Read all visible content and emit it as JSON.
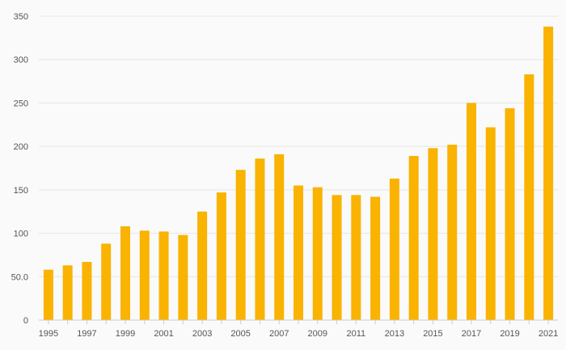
{
  "chart_data": {
    "type": "bar",
    "title": "",
    "xlabel": "",
    "ylabel": "",
    "categories": [
      "1995",
      "1996",
      "1997",
      "1998",
      "1999",
      "2000",
      "2001",
      "2002",
      "2003",
      "2004",
      "2005",
      "2006",
      "2007",
      "2008",
      "2009",
      "2010",
      "2011",
      "2012",
      "2013",
      "2014",
      "2015",
      "2016",
      "2017",
      "2018",
      "2019",
      "2020",
      "2021"
    ],
    "x_tick_labels": [
      "1995",
      "1997",
      "1999",
      "2001",
      "2003",
      "2005",
      "2007",
      "2009",
      "2011",
      "2013",
      "2015",
      "2017",
      "2019",
      "2021"
    ],
    "values": [
      58,
      63,
      67,
      88,
      108,
      103,
      102,
      98,
      125,
      147,
      173,
      186,
      191,
      155,
      153,
      144,
      144,
      142,
      163,
      189,
      198,
      202,
      250,
      222,
      244,
      283,
      338
    ],
    "ylim": [
      0,
      350
    ],
    "y_ticks": [
      0,
      50,
      100,
      150,
      200,
      250,
      300,
      350
    ],
    "y_tick_labels": [
      "0",
      "50.0",
      "100",
      "150",
      "200",
      "250",
      "300",
      "350"
    ],
    "grid": true,
    "bar_color": "#f9b300"
  }
}
